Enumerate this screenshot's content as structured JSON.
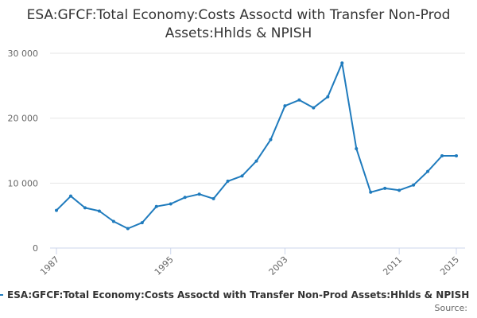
{
  "title": "ESA:GFCF:Total Economy:Costs Assoctd with Transfer Non-Prod Assets:Hhlds & NPISH",
  "source_label": "Source:",
  "colors": {
    "series": "#1f7bbd",
    "grid": "#e6e6e6",
    "axis": "#ccd6eb",
    "text": "#333333",
    "tick_text": "#666666"
  },
  "chart_data": {
    "type": "line",
    "title": "ESA:GFCF:Total Economy:Costs Assoctd with Transfer Non-Prod Assets:Hhlds & NPISH",
    "xlabel": "",
    "ylabel": "",
    "x": [
      1987,
      1988,
      1989,
      1990,
      1991,
      1992,
      1993,
      1994,
      1995,
      1996,
      1997,
      1998,
      1999,
      2000,
      2001,
      2002,
      2003,
      2004,
      2005,
      2006,
      2007,
      2008,
      2009,
      2010,
      2011,
      2012,
      2013,
      2014,
      2015
    ],
    "series": [
      {
        "name": "ESA:GFCF:Total Economy:Costs Assoctd with Transfer Non-Prod Assets:Hhlds & NPISH",
        "values": [
          5800,
          8000,
          6200,
          5700,
          4100,
          3000,
          3900,
          6400,
          6800,
          7800,
          8300,
          7600,
          10300,
          11100,
          13400,
          16700,
          21900,
          22800,
          21600,
          23300,
          28500,
          15300,
          8600,
          9200,
          8900,
          9700,
          11800,
          14200,
          14200
        ]
      }
    ],
    "xlim": [
      1987,
      2015
    ],
    "ylim": [
      0,
      30000
    ],
    "x_ticks": [
      "1987",
      "1995",
      "2003",
      "2011",
      "2015"
    ],
    "x_tick_values": [
      1987,
      1995,
      2003,
      2011,
      2015
    ],
    "y_ticks": [
      "0",
      "10 000",
      "20 000",
      "30 000"
    ],
    "y_tick_values": [
      0,
      10000,
      20000,
      30000
    ],
    "grid": true,
    "legend_position": "bottom"
  }
}
